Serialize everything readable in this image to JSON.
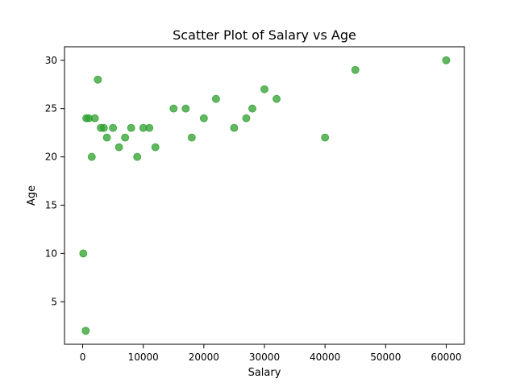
{
  "chart_data": {
    "type": "scatter",
    "title": "Scatter Plot of Salary vs Age",
    "xlabel": "Salary",
    "ylabel": "Age",
    "xlim": [
      -3000,
      63000
    ],
    "ylim": [
      0.6,
      31.4
    ],
    "xticks": [
      0,
      10000,
      20000,
      30000,
      40000,
      50000,
      60000
    ],
    "xtick_labels": [
      "0",
      "10000",
      "20000",
      "30000",
      "40000",
      "50000",
      "60000"
    ],
    "yticks": [
      5,
      10,
      15,
      20,
      25,
      30
    ],
    "ytick_labels": [
      "5",
      "10",
      "15",
      "20",
      "25",
      "30"
    ],
    "grid": false,
    "point_color": "#2ca02c",
    "point_alpha": 0.75,
    "series": [
      {
        "points": [
          {
            "x": 100,
            "y": 10
          },
          {
            "x": 500,
            "y": 2
          },
          {
            "x": 600,
            "y": 24
          },
          {
            "x": 1000,
            "y": 24
          },
          {
            "x": 1500,
            "y": 20
          },
          {
            "x": 2000,
            "y": 24
          },
          {
            "x": 2500,
            "y": 28
          },
          {
            "x": 3000,
            "y": 23
          },
          {
            "x": 3500,
            "y": 23
          },
          {
            "x": 4000,
            "y": 22
          },
          {
            "x": 5000,
            "y": 23
          },
          {
            "x": 6000,
            "y": 21
          },
          {
            "x": 7000,
            "y": 22
          },
          {
            "x": 8000,
            "y": 23
          },
          {
            "x": 9000,
            "y": 20
          },
          {
            "x": 10000,
            "y": 23
          },
          {
            "x": 11000,
            "y": 23
          },
          {
            "x": 12000,
            "y": 21
          },
          {
            "x": 15000,
            "y": 25
          },
          {
            "x": 17000,
            "y": 25
          },
          {
            "x": 18000,
            "y": 22
          },
          {
            "x": 20000,
            "y": 24
          },
          {
            "x": 22000,
            "y": 26
          },
          {
            "x": 25000,
            "y": 23
          },
          {
            "x": 27000,
            "y": 24
          },
          {
            "x": 28000,
            "y": 25
          },
          {
            "x": 30000,
            "y": 27
          },
          {
            "x": 32000,
            "y": 26
          },
          {
            "x": 40000,
            "y": 22
          },
          {
            "x": 45000,
            "y": 29
          },
          {
            "x": 60000,
            "y": 30
          }
        ]
      }
    ]
  }
}
